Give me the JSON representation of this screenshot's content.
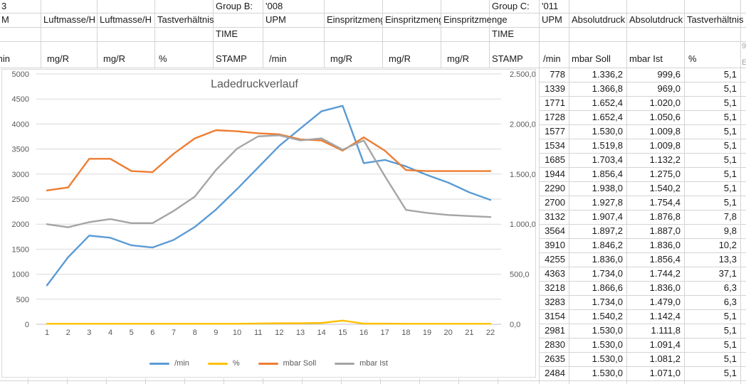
{
  "sheet": {
    "header": {
      "r1": {
        "c1": "3",
        "group_b_label": "Group B:",
        "group_b_value": "'008",
        "group_c_label": "Group C:",
        "group_c_value": "'011"
      },
      "r2": {
        "c1": "M",
        "c2": "Luftmasse/H",
        "c3": "Luftmasse/H",
        "c4": "Tastverhältnis",
        "c6": "UPM",
        "c7": "Einspritzmenge",
        "c8": "Einspritzmenge",
        "c9": "Einspritzmenge",
        "c11": "UPM",
        "c12": "Absolutdruck",
        "c13": "Absolutdruck",
        "c14": "Tastverhältnis"
      },
      "r3": {
        "c5": "TIME",
        "c10": "TIME"
      },
      "r4": {
        "c1": "min",
        "c2": "mg/R",
        "c3": "mg/R",
        "c4": "%",
        "c5": "STAMP",
        "c6": "/min",
        "c7": "mg/R",
        "c8": "mg/R",
        "c9": "mg/R",
        "c10": "STAMP",
        "c11": "/min",
        "c12": "mbar Soll",
        "c13": "mbar Ist",
        "c14": "%",
        "c15a": "9",
        "c15b": "E"
      }
    },
    "table": {
      "columns": [
        "/min",
        "mbar Soll",
        "mbar Ist",
        "%"
      ],
      "rows": [
        [
          "778",
          "1.336,2",
          "999,6",
          "5,1"
        ],
        [
          "1339",
          "1.366,8",
          "969,0",
          "5,1"
        ],
        [
          "1771",
          "1.652,4",
          "1.020,0",
          "5,1"
        ],
        [
          "1728",
          "1.652,4",
          "1.050,6",
          "5,1"
        ],
        [
          "1577",
          "1.530,0",
          "1.009,8",
          "5,1"
        ],
        [
          "1534",
          "1.519,8",
          "1.009,8",
          "5,1"
        ],
        [
          "1685",
          "1.703,4",
          "1.132,2",
          "5,1"
        ],
        [
          "1944",
          "1.856,4",
          "1.275,0",
          "5,1"
        ],
        [
          "2290",
          "1.938,0",
          "1.540,2",
          "5,1"
        ],
        [
          "2700",
          "1.927,8",
          "1.754,4",
          "5,1"
        ],
        [
          "3132",
          "1.907,4",
          "1.876,8",
          "7,8"
        ],
        [
          "3564",
          "1.897,2",
          "1.887,0",
          "9,8"
        ],
        [
          "3910",
          "1.846,2",
          "1.836,0",
          "10,2"
        ],
        [
          "4255",
          "1.836,0",
          "1.856,4",
          "13,3"
        ],
        [
          "4363",
          "1.734,0",
          "1.744,2",
          "37,1"
        ],
        [
          "3218",
          "1.866,6",
          "1.836,0",
          "6,3"
        ],
        [
          "3283",
          "1.734,0",
          "1.479,0",
          "6,3"
        ],
        [
          "3154",
          "1.540,2",
          "1.142,4",
          "5,1"
        ],
        [
          "2981",
          "1.530,0",
          "1.111,8",
          "5,1"
        ],
        [
          "2830",
          "1.530,0",
          "1.091,4",
          "5,1"
        ],
        [
          "2635",
          "1.530,0",
          "1.081,2",
          "5,1"
        ],
        [
          "2484",
          "1.530,0",
          "1.071,0",
          "5,1"
        ]
      ]
    }
  },
  "chart_data": {
    "type": "line",
    "title": "Ladedruckverlauf",
    "x": [
      1,
      2,
      3,
      4,
      5,
      6,
      7,
      8,
      9,
      10,
      11,
      12,
      13,
      14,
      15,
      16,
      17,
      18,
      19,
      20,
      21,
      22
    ],
    "series": [
      {
        "name": "/min",
        "color": "#5B9BD5",
        "axis": "left",
        "values": [
          778,
          1339,
          1771,
          1728,
          1577,
          1534,
          1685,
          1944,
          2290,
          2700,
          3132,
          3564,
          3910,
          4255,
          4363,
          3218,
          3283,
          3154,
          2981,
          2830,
          2635,
          2484
        ]
      },
      {
        "name": "%",
        "color": "#FFC000",
        "axis": "right",
        "values": [
          5.1,
          5.1,
          5.1,
          5.1,
          5.1,
          5.1,
          5.1,
          5.1,
          5.1,
          5.1,
          7.8,
          9.8,
          10.2,
          13.3,
          37.1,
          6.3,
          6.3,
          5.1,
          5.1,
          5.1,
          5.1,
          5.1
        ]
      },
      {
        "name": "mbar Soll",
        "color": "#ED7D31",
        "axis": "right",
        "values": [
          1336.2,
          1366.8,
          1652.4,
          1652.4,
          1530.0,
          1519.8,
          1703.4,
          1856.4,
          1938.0,
          1927.8,
          1907.4,
          1897.2,
          1846.2,
          1836.0,
          1734.0,
          1866.6,
          1734.0,
          1540.2,
          1530.0,
          1530.0,
          1530.0,
          1530.0
        ]
      },
      {
        "name": "mbar Ist",
        "color": "#A5A5A5",
        "axis": "right",
        "values": [
          999.6,
          969.0,
          1020.0,
          1050.6,
          1009.8,
          1009.8,
          1132.2,
          1275.0,
          1540.2,
          1754.4,
          1876.8,
          1887.0,
          1836.0,
          1856.4,
          1744.2,
          1836.0,
          1479.0,
          1142.4,
          1111.8,
          1091.4,
          1081.2,
          1071.0
        ]
      }
    ],
    "left_axis": {
      "min": 0,
      "max": 5000,
      "step": 500,
      "labels": [
        "0",
        "500",
        "1000",
        "1500",
        "2000",
        "2500",
        "3000",
        "3500",
        "4000",
        "4500",
        "5000"
      ]
    },
    "right_axis": {
      "min": 0,
      "max": 2500,
      "step": 500,
      "labels": [
        "0,0",
        "500,0",
        "1.000,0",
        "1.500,0",
        "2.000,0",
        "2.500,0"
      ]
    },
    "legend_position": "bottom",
    "grid": true
  }
}
